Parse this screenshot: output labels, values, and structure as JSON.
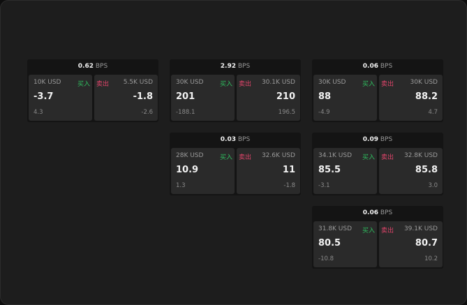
{
  "colors": {
    "buy": "#2fbf5f",
    "sell": "#e0446a",
    "card": "#2a2a2a"
  },
  "labels": {
    "unit": "BPS",
    "buy": "买入",
    "sell": "卖出"
  },
  "panels": [
    {
      "spread": "0.62",
      "bid_qty": "10K USD",
      "bid": "-3.7",
      "bid_chg": "4.3",
      "ask_qty": "5.5K USD",
      "ask": "-1.8",
      "ask_chg": "-2.6"
    },
    {
      "spread": "2.92",
      "bid_qty": "30K USD",
      "bid": "201",
      "bid_chg": "-188.1",
      "ask_qty": "30.1K USD",
      "ask": "210",
      "ask_chg": "196.5"
    },
    {
      "spread": "0.06",
      "bid_qty": "30K USD",
      "bid": "88",
      "bid_chg": "-4.9",
      "ask_qty": "30K USD",
      "ask": "88.2",
      "ask_chg": "4.7"
    },
    {
      "spread": "0.03",
      "bid_qty": "28K USD",
      "bid": "10.9",
      "bid_chg": "1.3",
      "ask_qty": "32.6K USD",
      "ask": "11",
      "ask_chg": "-1.8"
    },
    {
      "spread": "0.09",
      "bid_qty": "34.1K USD",
      "bid": "85.5",
      "bid_chg": "-3.1",
      "ask_qty": "32.8K USD",
      "ask": "85.8",
      "ask_chg": "3.0"
    },
    {
      "spread": "0.06",
      "bid_qty": "31.8K USD",
      "bid": "80.5",
      "bid_chg": "-10.8",
      "ask_qty": "39.1K USD",
      "ask": "80.7",
      "ask_chg": "10.2"
    }
  ]
}
